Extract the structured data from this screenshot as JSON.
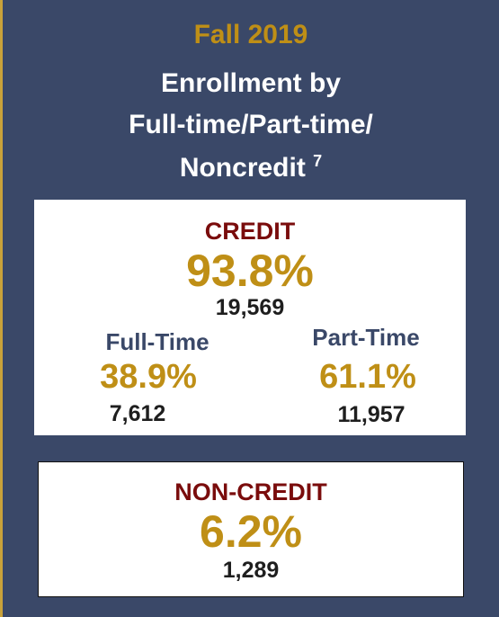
{
  "header": {
    "term": "Fall 2019",
    "title_lines": [
      "Enrollment by",
      "Full-time/Part-time/",
      "Noncredit"
    ],
    "footnote": "7"
  },
  "credit": {
    "label": "CREDIT",
    "percent": "93.8%",
    "count": "19,569",
    "full_time": {
      "label": "Full-Time",
      "percent": "38.9%",
      "count": "7,612"
    },
    "part_time": {
      "label": "Part-Time",
      "percent": "61.1%",
      "count": "11,957"
    }
  },
  "non_credit": {
    "label": "NON-CREDIT",
    "percent": "6.2%",
    "count": "1,289"
  }
}
